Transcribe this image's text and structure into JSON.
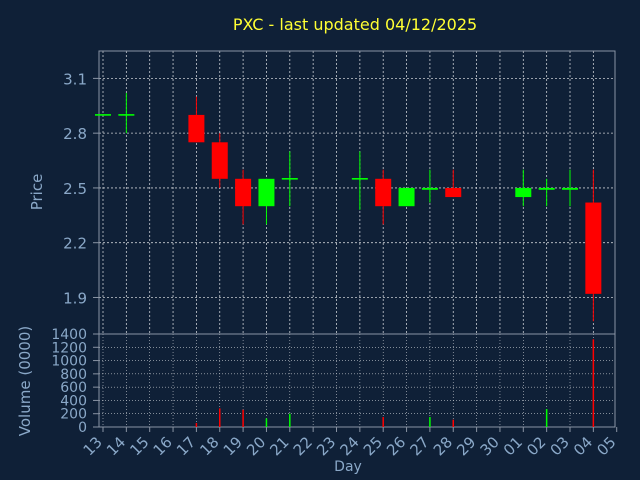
{
  "colors": {
    "background": "#0f2037",
    "frame": "#8a94a4",
    "grid": "#c8ccd2",
    "title": "#ffff33",
    "axis_text": "#8aa8c8",
    "up": "#00ff00",
    "down": "#ff0000"
  },
  "chart_data": [
    {
      "type": "candlestick",
      "title": "PXC - last updated 04/12/2025",
      "ylabel": "Price",
      "ylim": [
        1.7,
        3.25
      ],
      "yticks": [
        "1.9",
        "2.2",
        "2.5",
        "2.8",
        "3.1"
      ],
      "grid": true,
      "categories": [
        "13",
        "14",
        "15",
        "16",
        "17",
        "18",
        "19",
        "20",
        "21",
        "22",
        "23",
        "24",
        "25",
        "26",
        "27",
        "28",
        "29",
        "30",
        "01",
        "02",
        "03",
        "04",
        "05"
      ],
      "candles": [
        {
          "day": "13",
          "open": 2.9,
          "high": 2.9,
          "low": 2.9,
          "close": 2.9
        },
        {
          "day": "14",
          "open": 2.9,
          "high": 3.02,
          "low": 2.8,
          "close": 2.9
        },
        {
          "day": "17",
          "open": 2.9,
          "high": 3.0,
          "low": 2.75,
          "close": 2.75
        },
        {
          "day": "18",
          "open": 2.75,
          "high": 2.8,
          "low": 2.5,
          "close": 2.55
        },
        {
          "day": "19",
          "open": 2.55,
          "high": 2.6,
          "low": 2.3,
          "close": 2.4
        },
        {
          "day": "20",
          "open": 2.4,
          "high": 2.55,
          "low": 2.3,
          "close": 2.55
        },
        {
          "day": "21",
          "open": 2.55,
          "high": 2.7,
          "low": 2.4,
          "close": 2.55
        },
        {
          "day": "24",
          "open": 2.55,
          "high": 2.7,
          "low": 2.38,
          "close": 2.55
        },
        {
          "day": "25",
          "open": 2.55,
          "high": 2.6,
          "low": 2.3,
          "close": 2.4
        },
        {
          "day": "26",
          "open": 2.4,
          "high": 2.5,
          "low": 2.4,
          "close": 2.5
        },
        {
          "day": "27",
          "open": 2.49,
          "high": 2.6,
          "low": 2.42,
          "close": 2.5
        },
        {
          "day": "28",
          "open": 2.5,
          "high": 2.6,
          "low": 2.45,
          "close": 2.45
        },
        {
          "day": "01",
          "open": 2.45,
          "high": 2.6,
          "low": 2.4,
          "close": 2.5
        },
        {
          "day": "02",
          "open": 2.49,
          "high": 2.55,
          "low": 2.4,
          "close": 2.5
        },
        {
          "day": "03",
          "open": 2.49,
          "high": 2.6,
          "low": 2.4,
          "close": 2.5
        },
        {
          "day": "04",
          "open": 2.42,
          "high": 2.6,
          "low": 1.77,
          "close": 1.92
        }
      ]
    },
    {
      "type": "bar",
      "ylabel": "Volume (0000)",
      "xlabel": "Day",
      "ylim": [
        0,
        1400
      ],
      "yticks": [
        "0",
        "200",
        "400",
        "600",
        "800",
        "1000",
        "1200",
        "1400"
      ],
      "grid": true,
      "bars": [
        {
          "day": "17",
          "value": 60,
          "direction": "down"
        },
        {
          "day": "18",
          "value": 280,
          "direction": "down"
        },
        {
          "day": "19",
          "value": 260,
          "direction": "down"
        },
        {
          "day": "20",
          "value": 130,
          "direction": "up"
        },
        {
          "day": "21",
          "value": 200,
          "direction": "up"
        },
        {
          "day": "25",
          "value": 150,
          "direction": "down"
        },
        {
          "day": "27",
          "value": 150,
          "direction": "up"
        },
        {
          "day": "28",
          "value": 110,
          "direction": "down"
        },
        {
          "day": "02",
          "value": 270,
          "direction": "up"
        },
        {
          "day": "04",
          "value": 1320,
          "direction": "down"
        }
      ]
    }
  ]
}
